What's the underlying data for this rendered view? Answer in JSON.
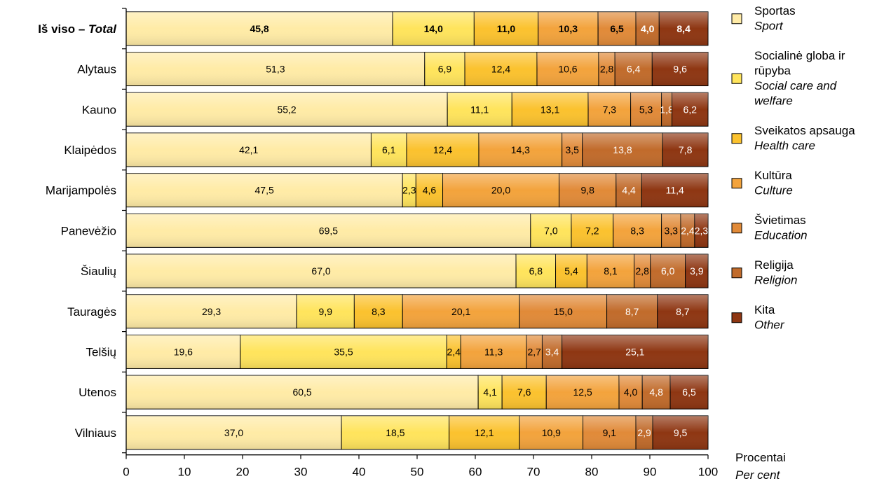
{
  "chart_data": {
    "type": "bar",
    "orientation": "horizontal",
    "stacked": true,
    "xlim": [
      0,
      100
    ],
    "x_ticks": [
      "0",
      "10",
      "20",
      "30",
      "40",
      "50",
      "60",
      "70",
      "80",
      "90",
      "100"
    ],
    "unit_label": {
      "lt": "Procentai",
      "en": "Per cent"
    },
    "categories": [
      {
        "main": "Iš viso – ",
        "italic": "Total"
      },
      {
        "main": "Alytaus"
      },
      {
        "main": "Kauno"
      },
      {
        "main": "Klaipėdos"
      },
      {
        "main": "Marijampolės"
      },
      {
        "main": "Panevėžio"
      },
      {
        "main": "Šiaulių"
      },
      {
        "main": "Tauragės"
      },
      {
        "main": "Telšių"
      },
      {
        "main": "Utenos"
      },
      {
        "main": "Vilniaus"
      }
    ],
    "value_labels": [
      [
        "45,8",
        "14,0",
        "11,0",
        "10,3",
        "6,5",
        "4,0",
        "8,4"
      ],
      [
        "51,3",
        "6,9",
        "12,4",
        "10,6",
        "2,8",
        "6,4",
        "9,6"
      ],
      [
        "55,2",
        "11,1",
        "13,1",
        "7,3",
        "5,3",
        "1,8",
        "6,2"
      ],
      [
        "42,1",
        "6,1",
        "12,4",
        "14,3",
        "3,5",
        "13,8",
        "7,8"
      ],
      [
        "47,5",
        "2,3",
        "4,6",
        "20,0",
        "9,8",
        "4,4",
        "11,4"
      ],
      [
        "69,5",
        "7,0",
        "7,2",
        "8,3",
        "3,3",
        "2,4",
        "2,3"
      ],
      [
        "67,0",
        "6,8",
        "5,4",
        "8,1",
        "2,8",
        "6,0",
        "3,9"
      ],
      [
        "29,3",
        "9,9",
        "8,3",
        "20,1",
        "15,0",
        "8,7",
        "8,7"
      ],
      [
        "19,6",
        "35,5",
        "2,4",
        "11,3",
        "2,7",
        "3,4",
        "25,1"
      ],
      [
        "60,5",
        "4,1",
        "7,6",
        "12,5",
        "4,0",
        "4,8",
        "6,5"
      ],
      [
        "37,0",
        "18,5",
        "12,1",
        "10,9",
        "9,1",
        "2,9",
        "9,5"
      ]
    ],
    "series": [
      {
        "name_lines": [
          "Sportas"
        ],
        "name_en_lines": [
          "Sport"
        ],
        "color": "#FFEBA6",
        "values": [
          45.8,
          51.3,
          55.2,
          42.1,
          47.5,
          69.5,
          67.0,
          29.3,
          19.6,
          60.5,
          37.0
        ]
      },
      {
        "name_lines": [
          "Socialinė globa ir",
          "rūpyba"
        ],
        "name_en_lines": [
          "Social care and",
          "welfare"
        ],
        "color": "#FFE45C",
        "values": [
          14.0,
          6.9,
          11.1,
          6.1,
          2.3,
          7.0,
          6.8,
          9.9,
          35.5,
          4.1,
          18.5
        ]
      },
      {
        "name_lines": [
          "Sveikatos apsauga"
        ],
        "name_en_lines": [
          "Health care"
        ],
        "color": "#FBC22E",
        "values": [
          11.0,
          12.4,
          13.1,
          12.4,
          4.6,
          7.2,
          5.4,
          8.3,
          2.4,
          7.6,
          12.1
        ]
      },
      {
        "name_lines": [
          "Kultūra"
        ],
        "name_en_lines": [
          "Culture"
        ],
        "color": "#F3A33C",
        "values": [
          10.3,
          10.6,
          7.3,
          14.3,
          20.0,
          8.3,
          8.1,
          20.1,
          11.3,
          12.5,
          10.9
        ]
      },
      {
        "name_lines": [
          "Švietimas"
        ],
        "name_en_lines": [
          "Education"
        ],
        "color": "#E18A38",
        "values": [
          6.5,
          2.8,
          5.3,
          3.5,
          9.8,
          3.3,
          2.8,
          15.0,
          2.7,
          4.0,
          9.1
        ]
      },
      {
        "name_lines": [
          "Religija"
        ],
        "name_en_lines": [
          "Religion"
        ],
        "color": "#C16B2B",
        "values": [
          4.0,
          6.4,
          1.8,
          13.8,
          4.4,
          2.4,
          6.0,
          8.7,
          3.4,
          4.8,
          2.9
        ]
      },
      {
        "name_lines": [
          "Kita"
        ],
        "name_en_lines": [
          "Other"
        ],
        "color": "#8E3612",
        "values": [
          8.4,
          9.6,
          6.2,
          7.8,
          11.4,
          2.3,
          3.9,
          8.7,
          25.1,
          6.5,
          9.5
        ]
      }
    ],
    "label_text_colors": [
      "#000000",
      "#000000",
      "#000000",
      "#000000",
      "#000000",
      "#FFFFFF",
      "#FFFFFF"
    ],
    "grid": false,
    "legend_position": "right"
  }
}
